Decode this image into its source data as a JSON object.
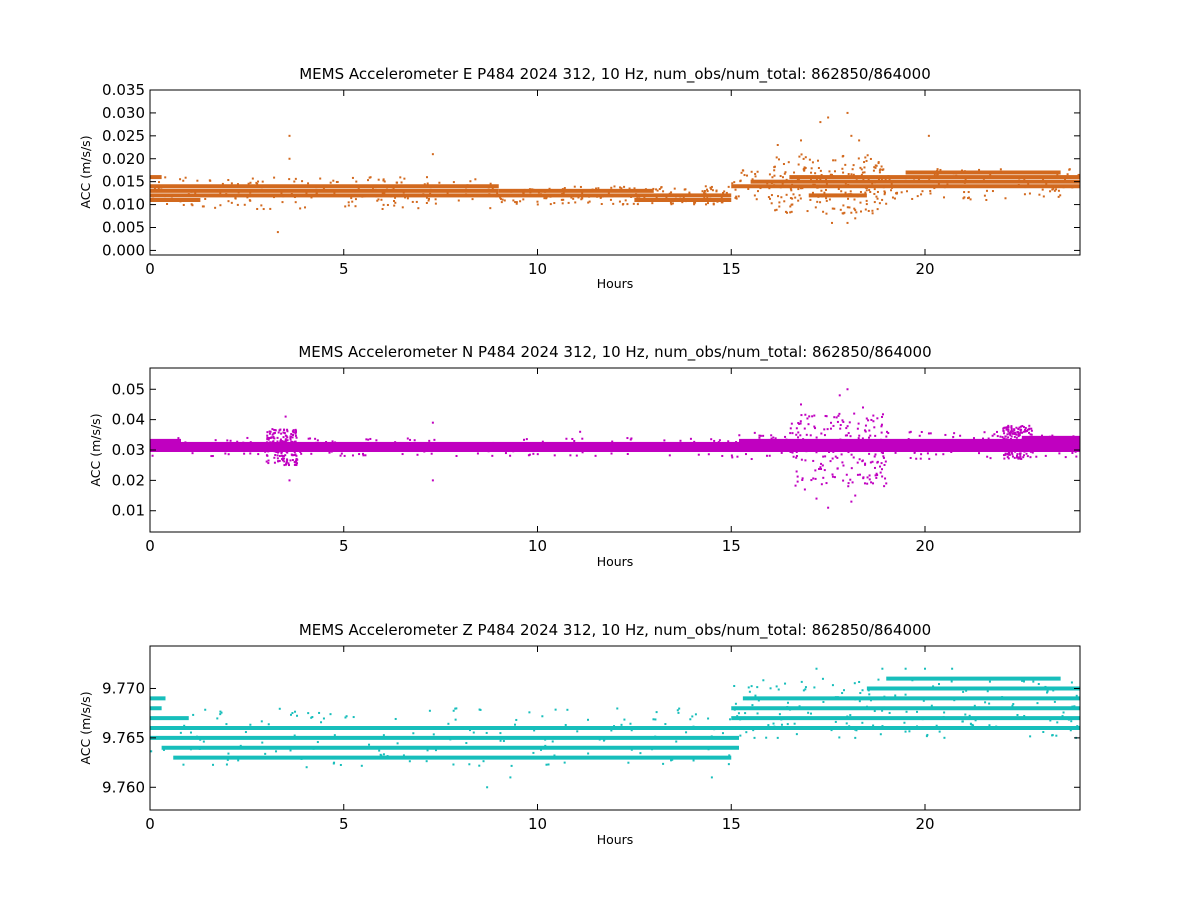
{
  "colors": {
    "E": "#d2691e",
    "N": "#c000c0",
    "Z": "#17bebb"
  },
  "chart_data": [
    {
      "type": "scatter",
      "title": "MEMS Accelerometer E P484 2024 312, 10 Hz, num_obs/num_total: 862850/864000",
      "xlabel": "Hours",
      "ylabel": "ACC (m/s/s)",
      "xlim": [
        0,
        24
      ],
      "ylim": [
        -0.001,
        0.035
      ],
      "xticks": [
        0,
        5,
        10,
        15,
        20
      ],
      "xtick_labels": [
        "0",
        "5",
        "10",
        "15",
        "20"
      ],
      "yticks": [
        0.0,
        0.005,
        0.01,
        0.015,
        0.02,
        0.025,
        0.03,
        0.035
      ],
      "ytick_labels": [
        "0.000",
        "0.005",
        "0.010",
        "0.015",
        "0.020",
        "0.025",
        "0.030",
        "0.035"
      ],
      "series": [
        {
          "color_key": "E",
          "bands": [
            {
              "x": [
                0,
                0.3
              ],
              "y": 0.016
            },
            {
              "x": [
                0,
                9
              ],
              "y": 0.014
            },
            {
              "x": [
                0,
                9
              ],
              "y": 0.013
            },
            {
              "x": [
                0,
                15
              ],
              "y": 0.012
            },
            {
              "x": [
                0,
                1.3
              ],
              "y": 0.011
            },
            {
              "x": [
                9,
                13
              ],
              "y": 0.013
            },
            {
              "x": [
                12.5,
                15
              ],
              "y": 0.011
            },
            {
              "x": [
                15,
                24
              ],
              "y": 0.014
            },
            {
              "x": [
                15.5,
                24
              ],
              "y": 0.015
            },
            {
              "x": [
                16.5,
                24
              ],
              "y": 0.016
            },
            {
              "x": [
                19.5,
                23.5
              ],
              "y": 0.017
            },
            {
              "x": [
                17,
                18.5
              ],
              "y": 0.012
            }
          ],
          "scatter_ranges": [
            {
              "x": [
                0,
                9
              ],
              "y": [
                0.009,
                0.016
              ]
            },
            {
              "x": [
                9,
                15
              ],
              "y": [
                0.01,
                0.014
              ]
            },
            {
              "x": [
                15,
                24
              ],
              "y": [
                0.011,
                0.018
              ]
            },
            {
              "x": [
                16,
                19
              ],
              "y": [
                0.008,
                0.021
              ]
            }
          ],
          "outliers": [
            {
              "x": 3.3,
              "y": 0.004
            },
            {
              "x": 3.6,
              "y": 0.025
            },
            {
              "x": 3.6,
              "y": 0.02
            },
            {
              "x": 7.3,
              "y": 0.021
            },
            {
              "x": 16.2,
              "y": 0.023
            },
            {
              "x": 17.3,
              "y": 0.028
            },
            {
              "x": 17.5,
              "y": 0.029
            },
            {
              "x": 18.0,
              "y": 0.03
            },
            {
              "x": 18.1,
              "y": 0.025
            },
            {
              "x": 17.6,
              "y": 0.006
            },
            {
              "x": 18.0,
              "y": 0.006
            },
            {
              "x": 18.2,
              "y": 0.007
            },
            {
              "x": 16.8,
              "y": 0.024
            },
            {
              "x": 20.1,
              "y": 0.025
            },
            {
              "x": 18.3,
              "y": 0.024
            }
          ]
        }
      ]
    },
    {
      "type": "scatter",
      "title": "MEMS Accelerometer N P484 2024 312, 10 Hz, num_obs/num_total: 862850/864000",
      "xlabel": "Hours",
      "ylabel": "ACC (m/s/s)",
      "xlim": [
        0,
        24
      ],
      "ylim": [
        0.003,
        0.057
      ],
      "xticks": [
        0,
        5,
        10,
        15,
        20
      ],
      "xtick_labels": [
        "0",
        "5",
        "10",
        "15",
        "20"
      ],
      "yticks": [
        0.01,
        0.02,
        0.03,
        0.04,
        0.05
      ],
      "ytick_labels": [
        "0.01",
        "0.02",
        "0.03",
        "0.04",
        "0.05"
      ],
      "series": [
        {
          "color_key": "N",
          "bands": [
            {
              "x": [
                0,
                24
              ],
              "y": 0.031
            },
            {
              "x": [
                0,
                24
              ],
              "y": 0.03
            },
            {
              "x": [
                0,
                24
              ],
              "y": 0.032
            },
            {
              "x": [
                0,
                0.8
              ],
              "y": 0.033
            },
            {
              "x": [
                15.2,
                24
              ],
              "y": 0.033
            },
            {
              "x": [
                22.5,
                24
              ],
              "y": 0.034
            }
          ],
          "scatter_ranges": [
            {
              "x": [
                0,
                15
              ],
              "y": [
                0.028,
                0.034
              ]
            },
            {
              "x": [
                15,
                24
              ],
              "y": [
                0.027,
                0.036
              ]
            },
            {
              "x": [
                16.5,
                19
              ],
              "y": [
                0.018,
                0.042
              ]
            },
            {
              "x": [
                3,
                3.8
              ],
              "y": [
                0.025,
                0.037
              ]
            },
            {
              "x": [
                22,
                22.8
              ],
              "y": [
                0.027,
                0.038
              ]
            }
          ],
          "outliers": [
            {
              "x": 3.5,
              "y": 0.041
            },
            {
              "x": 3.6,
              "y": 0.02
            },
            {
              "x": 7.3,
              "y": 0.039
            },
            {
              "x": 7.3,
              "y": 0.02
            },
            {
              "x": 17.5,
              "y": 0.011
            },
            {
              "x": 16.8,
              "y": 0.045
            },
            {
              "x": 18.0,
              "y": 0.05
            },
            {
              "x": 17.8,
              "y": 0.048
            },
            {
              "x": 18.2,
              "y": 0.015
            },
            {
              "x": 18.1,
              "y": 0.013
            },
            {
              "x": 17.2,
              "y": 0.014
            },
            {
              "x": 19.0,
              "y": 0.019
            },
            {
              "x": 16.9,
              "y": 0.017
            },
            {
              "x": 18.4,
              "y": 0.044
            },
            {
              "x": 11.1,
              "y": 0.036
            }
          ]
        }
      ]
    },
    {
      "type": "scatter",
      "title": "MEMS Accelerometer Z P484 2024 312, 10 Hz, num_obs/num_total: 862850/864000",
      "xlabel": "Hours",
      "ylabel": "ACC (m/s/s)",
      "xlim": [
        0,
        24
      ],
      "ylim": [
        9.7577,
        9.7743
      ],
      "xticks": [
        0,
        5,
        10,
        15,
        20
      ],
      "xtick_labels": [
        "0",
        "5",
        "10",
        "15",
        "20"
      ],
      "yticks": [
        9.76,
        9.765,
        9.77
      ],
      "ytick_labels": [
        "9.760",
        "9.765",
        "9.770"
      ],
      "series": [
        {
          "color_key": "Z",
          "bands": [
            {
              "x": [
                0,
                0.4
              ],
              "y": 9.769
            },
            {
              "x": [
                0,
                0.3
              ],
              "y": 9.768
            },
            {
              "x": [
                0,
                1.0
              ],
              "y": 9.767
            },
            {
              "x": [
                0,
                15.2
              ],
              "y": 9.766
            },
            {
              "x": [
                0,
                15.2
              ],
              "y": 9.765
            },
            {
              "x": [
                0.3,
                15.2
              ],
              "y": 9.764
            },
            {
              "x": [
                0.6,
                15.0
              ],
              "y": 9.763
            },
            {
              "x": [
                15.0,
                24
              ],
              "y": 9.767
            },
            {
              "x": [
                15.0,
                24
              ],
              "y": 9.768
            },
            {
              "x": [
                15.1,
                24
              ],
              "y": 9.766
            },
            {
              "x": [
                15.3,
                24
              ],
              "y": 9.769
            },
            {
              "x": [
                18.5,
                24
              ],
              "y": 9.77
            },
            {
              "x": [
                19.0,
                23.5
              ],
              "y": 9.771
            }
          ],
          "scatter_ranges": [
            {
              "x": [
                0,
                15
              ],
              "y": [
                9.762,
                9.768
              ]
            },
            {
              "x": [
                15,
                24
              ],
              "y": [
                9.765,
                9.771
              ]
            }
          ],
          "outliers": [
            {
              "x": 8.7,
              "y": 9.76
            },
            {
              "x": 9.3,
              "y": 9.761
            },
            {
              "x": 14.5,
              "y": 9.761
            },
            {
              "x": 17.2,
              "y": 9.772
            },
            {
              "x": 19.5,
              "y": 9.772
            },
            {
              "x": 20.0,
              "y": 9.772
            },
            {
              "x": 20.7,
              "y": 9.772
            },
            {
              "x": 15.6,
              "y": 9.765
            },
            {
              "x": 16.2,
              "y": 9.765
            },
            {
              "x": 18.2,
              "y": 9.765
            },
            {
              "x": 23.9,
              "y": 9.765
            },
            {
              "x": 18.9,
              "y": 9.772
            }
          ]
        }
      ]
    }
  ]
}
